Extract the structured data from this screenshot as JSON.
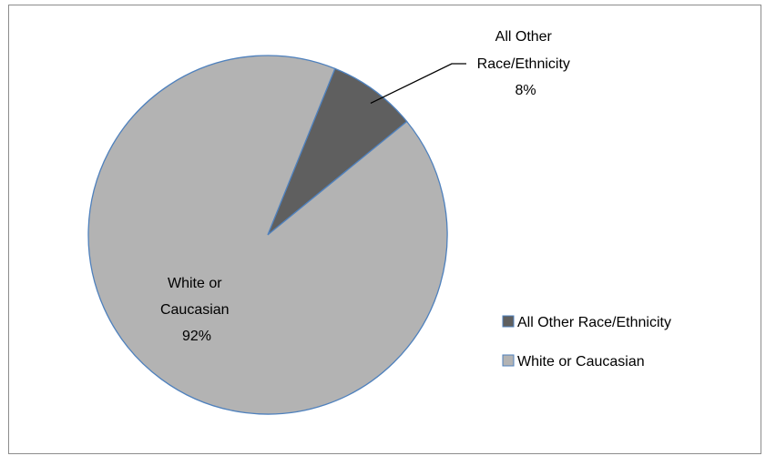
{
  "chart_data": {
    "type": "pie",
    "slices": [
      {
        "name": "All Other Race/Ethnicity",
        "value": 8,
        "label_lines": [
          "All Other",
          "Race/Ethnicity",
          "8%"
        ],
        "color": "#5f5f5f"
      },
      {
        "name": "White or Caucasian",
        "value": 92,
        "label_lines": [
          "White or",
          "Caucasian",
          "92%"
        ],
        "color": "#b3b3b3"
      }
    ],
    "slice_border_color": "#4f81bd",
    "legend": {
      "placement": "right",
      "entries": [
        "All Other Race/Ethnicity",
        "White or Caucasian"
      ]
    }
  }
}
